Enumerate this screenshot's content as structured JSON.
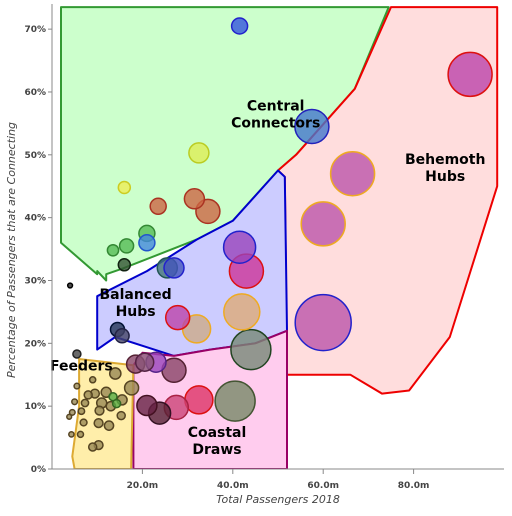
{
  "chart_data": {
    "type": "scatter",
    "title": "",
    "xlabel": "Total Passengers 2018",
    "ylabel": "Percentage of Passengers that are Connecting",
    "xlim": [
      0,
      100
    ],
    "ylim": [
      0,
      74
    ],
    "x_unit": "m",
    "y_unit": "%",
    "x_ticks": [
      {
        "value": 20,
        "label": "20.0m"
      },
      {
        "value": 40,
        "label": "40.0m"
      },
      {
        "value": 60,
        "label": "60.0m"
      },
      {
        "value": 80,
        "label": "80.0m"
      }
    ],
    "y_ticks": [
      {
        "value": 0,
        "label": "0%"
      },
      {
        "value": 10,
        "label": "10%"
      },
      {
        "value": 20,
        "label": "20%"
      },
      {
        "value": 30,
        "label": "30%"
      },
      {
        "value": 40,
        "label": "40%"
      },
      {
        "value": 50,
        "label": "50%"
      },
      {
        "value": 60,
        "label": "60%"
      },
      {
        "value": 70,
        "label": "70%"
      }
    ],
    "grid": false,
    "legend": "none",
    "regions": [
      {
        "label_lines": [
          "Central",
          "Connectors"
        ],
        "label_at": [
          49.5,
          56.5
        ],
        "fill": "#ccffcc",
        "stroke": "#339933",
        "polygon": [
          [
            2,
            73.5
          ],
          [
            74.5,
            73.5
          ],
          [
            67,
            60.5
          ],
          [
            54,
            50
          ],
          [
            50,
            47.5
          ],
          [
            40,
            39.5
          ],
          [
            32,
            36.5
          ],
          [
            16,
            32
          ],
          [
            12,
            31
          ],
          [
            12,
            30
          ],
          [
            10,
            31.5
          ],
          [
            10,
            31
          ],
          [
            2,
            36
          ]
        ]
      },
      {
        "label_lines": [
          "Behemoth",
          "Hubs"
        ],
        "label_at": [
          87,
          48
        ],
        "fill": "#ffdddd",
        "stroke": "#ee0000",
        "polygon": [
          [
            75,
            73.5
          ],
          [
            98.5,
            73.5
          ],
          [
            98.5,
            45
          ],
          [
            88,
            21
          ],
          [
            79,
            12.5
          ],
          [
            73,
            12
          ],
          [
            66,
            15
          ],
          [
            52,
            15
          ],
          [
            51.5,
            46.5
          ],
          [
            50,
            47.5
          ],
          [
            54,
            50
          ],
          [
            67,
            60.5
          ]
        ]
      },
      {
        "label_lines": [
          "Balanced",
          "Hubs"
        ],
        "label_at": [
          18.5,
          26.5
        ],
        "fill": "#ccccff",
        "stroke": "#0000cc",
        "polygon": [
          [
            10,
            27.5
          ],
          [
            21,
            31.5
          ],
          [
            32,
            36.5
          ],
          [
            40,
            39.5
          ],
          [
            50,
            47.5
          ],
          [
            51.5,
            46.5
          ],
          [
            52,
            22
          ],
          [
            45,
            20
          ],
          [
            35,
            19
          ],
          [
            27,
            18
          ],
          [
            14,
            21
          ],
          [
            10,
            19
          ]
        ]
      },
      {
        "label_lines": [
          "Coastal",
          "Draws"
        ],
        "label_at": [
          36.5,
          4.5
        ],
        "fill": "#ffccee",
        "stroke": "#990066",
        "polygon": [
          [
            18,
            16.5
          ],
          [
            20,
            18.5
          ],
          [
            27,
            18
          ],
          [
            35,
            19
          ],
          [
            45,
            20
          ],
          [
            52,
            22
          ],
          [
            52,
            0
          ],
          [
            18,
            0
          ]
        ]
      },
      {
        "label_lines": [
          "Feeders"
        ],
        "label_at": [
          6.5,
          16.5
        ],
        "fill": "#ffeeaa",
        "stroke": "#ddaa33",
        "polygon": [
          [
            6,
            17.5
          ],
          [
            18,
            16.5
          ],
          [
            17.5,
            0
          ],
          [
            5,
            0
          ],
          [
            4.5,
            2
          ],
          [
            6,
            10
          ]
        ]
      }
    ],
    "points": [
      {
        "x": 41.5,
        "y": 70.5,
        "r": 4,
        "fill": "#3355dd",
        "stroke": "#2222cc"
      },
      {
        "x": 92.5,
        "y": 62.8,
        "r": 11,
        "fill": "#bb44aa",
        "stroke": "#dd1111"
      },
      {
        "x": 57.5,
        "y": 54.5,
        "r": 8.5,
        "fill": "#4477cc",
        "stroke": "#2222bb"
      },
      {
        "x": 32.5,
        "y": 50.3,
        "r": 5,
        "fill": "#ddee55",
        "stroke": "#bbcc22"
      },
      {
        "x": 66.5,
        "y": 47,
        "r": 11,
        "fill": "#bb55aa",
        "stroke": "#eeaa22"
      },
      {
        "x": 16,
        "y": 44.8,
        "r": 3,
        "fill": "#eeee55",
        "stroke": "#cccc22"
      },
      {
        "x": 31.5,
        "y": 43,
        "r": 5,
        "fill": "#cc6644",
        "stroke": "#aa3322"
      },
      {
        "x": 23.5,
        "y": 41.8,
        "r": 4,
        "fill": "#cc6644",
        "stroke": "#aa3322"
      },
      {
        "x": 34.5,
        "y": 41,
        "r": 6,
        "fill": "#cc6644",
        "stroke": "#aa3322"
      },
      {
        "x": 60,
        "y": 39,
        "r": 11,
        "fill": "#bb55aa",
        "stroke": "#eeaa22"
      },
      {
        "x": 21,
        "y": 37.5,
        "r": 4,
        "fill": "#55bb55",
        "stroke": "#338833"
      },
      {
        "x": 21,
        "y": 36,
        "r": 4,
        "fill": "#4488dd",
        "stroke": "#2255cc"
      },
      {
        "x": 16.5,
        "y": 35.5,
        "r": 3.5,
        "fill": "#55bb55",
        "stroke": "#338833"
      },
      {
        "x": 41.5,
        "y": 35.3,
        "r": 8,
        "fill": "#9944bb",
        "stroke": "#2222cc"
      },
      {
        "x": 13.5,
        "y": 34.8,
        "r": 2.8,
        "fill": "#55bb55",
        "stroke": "#338833"
      },
      {
        "x": 16,
        "y": 32.5,
        "r": 3,
        "fill": "#335533",
        "stroke": "#112211"
      },
      {
        "x": 25.5,
        "y": 32,
        "r": 5,
        "fill": "#447777",
        "stroke": "#225555"
      },
      {
        "x": 27,
        "y": 32,
        "r": 5,
        "fill": "#4455bb",
        "stroke": "#2222cc"
      },
      {
        "x": 43,
        "y": 31.5,
        "r": 8.5,
        "fill": "#cc3399",
        "stroke": "#dd1111"
      },
      {
        "x": 4,
        "y": 29.2,
        "r": 1.2,
        "fill": "#222222",
        "stroke": "#000000"
      },
      {
        "x": 60,
        "y": 23.3,
        "r": 14,
        "fill": "#bb55aa",
        "stroke": "#2222cc"
      },
      {
        "x": 42,
        "y": 25,
        "r": 9,
        "fill": "#ddaa77",
        "stroke": "#eeaa22"
      },
      {
        "x": 32,
        "y": 22.3,
        "r": 7,
        "fill": "#ccaa88",
        "stroke": "#eeaa22"
      },
      {
        "x": 27.8,
        "y": 24.1,
        "r": 6,
        "fill": "#bb44aa",
        "stroke": "#dd1111"
      },
      {
        "x": 44,
        "y": 19,
        "r": 10,
        "fill": "#778877",
        "stroke": "#224422"
      },
      {
        "x": 14.5,
        "y": 22.2,
        "r": 3.5,
        "fill": "#223355",
        "stroke": "#001133"
      },
      {
        "x": 15.5,
        "y": 21.2,
        "r": 3.5,
        "fill": "#444466",
        "stroke": "#222244"
      },
      {
        "x": 5.5,
        "y": 18.3,
        "r": 2,
        "fill": "#444444",
        "stroke": "#222222"
      },
      {
        "x": 18.5,
        "y": 16.7,
        "r": 4.5,
        "fill": "#884466",
        "stroke": "#552233"
      },
      {
        "x": 20.5,
        "y": 17,
        "r": 4.5,
        "fill": "#885577",
        "stroke": "#552244"
      },
      {
        "x": 23,
        "y": 17,
        "r": 5,
        "fill": "#9944bb",
        "stroke": "#552288"
      },
      {
        "x": 27,
        "y": 15.7,
        "r": 6,
        "fill": "#884466",
        "stroke": "#552233"
      },
      {
        "x": 32.5,
        "y": 11,
        "r": 7,
        "fill": "#dd3366",
        "stroke": "#dd1111"
      },
      {
        "x": 40.5,
        "y": 10.8,
        "r": 10,
        "fill": "#778866",
        "stroke": "#445533"
      },
      {
        "x": 27.5,
        "y": 9.8,
        "r": 6,
        "fill": "#cc4477",
        "stroke": "#aa2244"
      },
      {
        "x": 21,
        "y": 10.1,
        "r": 5,
        "fill": "#662244",
        "stroke": "#441122"
      },
      {
        "x": 23.8,
        "y": 8.9,
        "r": 5.5,
        "fill": "#552233",
        "stroke": "#331122"
      },
      {
        "x": 17.6,
        "y": 12.9,
        "r": 3.5,
        "fill": "#998855",
        "stroke": "#554422"
      },
      {
        "x": 14,
        "y": 15.2,
        "r": 2.8,
        "fill": "#998855",
        "stroke": "#554422"
      },
      {
        "x": 12,
        "y": 12.2,
        "r": 2.5,
        "fill": "#998855",
        "stroke": "#554422"
      },
      {
        "x": 15.5,
        "y": 11,
        "r": 2.5,
        "fill": "#998855",
        "stroke": "#554422"
      },
      {
        "x": 11,
        "y": 10.5,
        "r": 2.5,
        "fill": "#998855",
        "stroke": "#554422"
      },
      {
        "x": 13.5,
        "y": 11.5,
        "r": 2,
        "fill": "#55aa44",
        "stroke": "#336622"
      },
      {
        "x": 14.3,
        "y": 10.4,
        "r": 2,
        "fill": "#55aa44",
        "stroke": "#336622"
      },
      {
        "x": 13,
        "y": 10,
        "r": 2.3,
        "fill": "#998855",
        "stroke": "#554422"
      },
      {
        "x": 9.5,
        "y": 12,
        "r": 2.2,
        "fill": "#998855",
        "stroke": "#554422"
      },
      {
        "x": 10.5,
        "y": 9.3,
        "r": 2.2,
        "fill": "#998855",
        "stroke": "#554422"
      },
      {
        "x": 8,
        "y": 11.8,
        "r": 2,
        "fill": "#998855",
        "stroke": "#554422"
      },
      {
        "x": 7.3,
        "y": 10.5,
        "r": 1.8,
        "fill": "#998855",
        "stroke": "#554422"
      },
      {
        "x": 6.5,
        "y": 9.2,
        "r": 1.6,
        "fill": "#998855",
        "stroke": "#554422"
      },
      {
        "x": 4.5,
        "y": 9,
        "r": 1.4,
        "fill": "#998855",
        "stroke": "#554422"
      },
      {
        "x": 5,
        "y": 10.7,
        "r": 1.4,
        "fill": "#998855",
        "stroke": "#554422"
      },
      {
        "x": 3.8,
        "y": 8.3,
        "r": 1.2,
        "fill": "#998855",
        "stroke": "#554422"
      },
      {
        "x": 7,
        "y": 7.4,
        "r": 1.7,
        "fill": "#998855",
        "stroke": "#554422"
      },
      {
        "x": 6.3,
        "y": 5.5,
        "r": 1.5,
        "fill": "#998855",
        "stroke": "#554422"
      },
      {
        "x": 4.3,
        "y": 5.5,
        "r": 1.3,
        "fill": "#998855",
        "stroke": "#554422"
      },
      {
        "x": 10.3,
        "y": 7.3,
        "r": 2.2,
        "fill": "#998855",
        "stroke": "#554422"
      },
      {
        "x": 12.6,
        "y": 6.9,
        "r": 2.3,
        "fill": "#998855",
        "stroke": "#554422"
      },
      {
        "x": 9,
        "y": 3.5,
        "r": 2,
        "fill": "#998855",
        "stroke": "#554422"
      },
      {
        "x": 10.3,
        "y": 3.8,
        "r": 2.2,
        "fill": "#998855",
        "stroke": "#554422"
      },
      {
        "x": 15.3,
        "y": 8.5,
        "r": 2,
        "fill": "#998855",
        "stroke": "#554422"
      },
      {
        "x": 5.5,
        "y": 13.2,
        "r": 1.4,
        "fill": "#998855",
        "stroke": "#554422"
      },
      {
        "x": 9,
        "y": 14.2,
        "r": 1.5,
        "fill": "#998855",
        "stroke": "#554422"
      }
    ]
  }
}
